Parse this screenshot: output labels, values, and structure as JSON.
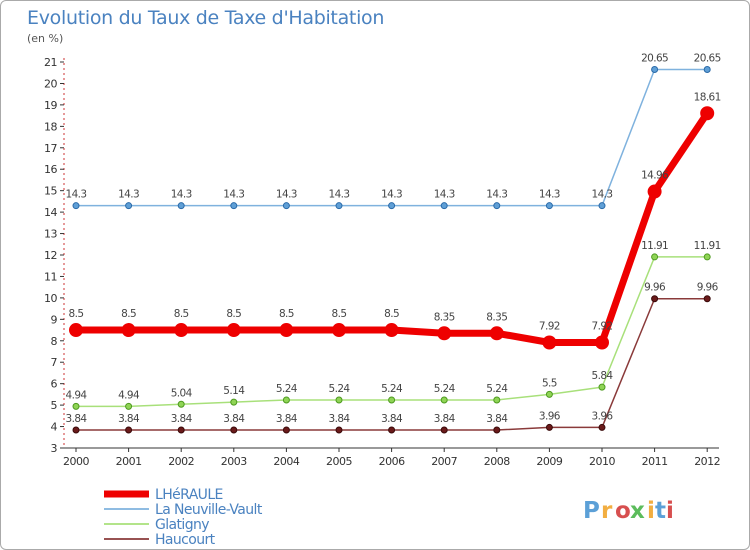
{
  "chart_data": {
    "type": "line",
    "title": "Evolution du Taux de Taxe d'Habitation",
    "subtitle": "(en %)",
    "xlabel": "",
    "ylabel": "",
    "categories": [
      "2000",
      "2001",
      "2002",
      "2003",
      "2004",
      "2005",
      "2006",
      "2007",
      "2008",
      "2009",
      "2010",
      "2011",
      "2012"
    ],
    "y_ticks": [
      "3",
      "4",
      "5",
      "6",
      "7",
      "8",
      "9",
      "10",
      "11",
      "12",
      "13",
      "14",
      "15",
      "16",
      "17",
      "18",
      "19",
      "20",
      "21"
    ],
    "ylim": [
      3,
      21
    ],
    "grid": false,
    "legend_position": "bottom-left",
    "series": [
      {
        "name": "LHéRAULE",
        "color": "#ee0000",
        "marker_edge": "#ee0000",
        "emphasis": true,
        "values": [
          8.5,
          8.5,
          8.5,
          8.5,
          8.5,
          8.5,
          8.5,
          8.35,
          8.35,
          7.92,
          7.92,
          14.96,
          18.61
        ],
        "labels": [
          "8.5",
          "8.5",
          "8.5",
          "8.5",
          "8.5",
          "8.5",
          "8.5",
          "8.35",
          "8.35",
          "7.92",
          "7.92",
          "14.96",
          "18.61"
        ]
      },
      {
        "name": "La Neuville-Vault",
        "color": "#7fb2de",
        "marker_edge": "#2a6aa8",
        "marker_fill": "#5f9fd6",
        "emphasis": false,
        "values": [
          14.3,
          14.3,
          14.3,
          14.3,
          14.3,
          14.3,
          14.3,
          14.3,
          14.3,
          14.3,
          14.3,
          20.65,
          20.65
        ],
        "labels": [
          "14.3",
          "14.3",
          "14.3",
          "14.3",
          "14.3",
          "14.3",
          "14.3",
          "14.3",
          "14.3",
          "14.3",
          "14.3",
          "20.65",
          "20.65"
        ]
      },
      {
        "name": "Glatigny",
        "color": "#a8e07a",
        "marker_edge": "#4d9a1f",
        "marker_fill": "#8fd455",
        "emphasis": false,
        "values": [
          4.94,
          4.94,
          5.04,
          5.14,
          5.24,
          5.24,
          5.24,
          5.24,
          5.24,
          5.5,
          5.84,
          11.91,
          11.91
        ],
        "labels": [
          "4.94",
          "4.94",
          "5.04",
          "5.14",
          "5.24",
          "5.24",
          "5.24",
          "5.24",
          "5.24",
          "5.5",
          "5.84",
          "11.91",
          "11.91"
        ]
      },
      {
        "name": "Haucourt",
        "color": "#8a3a3a",
        "marker_edge": "#3a0a0a",
        "marker_fill": "#6a1a1a",
        "emphasis": false,
        "values": [
          3.84,
          3.84,
          3.84,
          3.84,
          3.84,
          3.84,
          3.84,
          3.84,
          3.84,
          3.96,
          3.96,
          9.96,
          9.96
        ],
        "labels": [
          "3.84",
          "3.84",
          "3.84",
          "3.84",
          "3.84",
          "3.84",
          "3.84",
          "3.84",
          "3.84",
          "3.96",
          "3.96",
          "9.96",
          "9.96"
        ]
      }
    ]
  },
  "watermark": {
    "text": "Proxiti",
    "colors": [
      "#3f8fd0",
      "#f0a020",
      "#d03030",
      "#40b040",
      "#f0a020",
      "#3f8fd0",
      "#d03030"
    ]
  }
}
